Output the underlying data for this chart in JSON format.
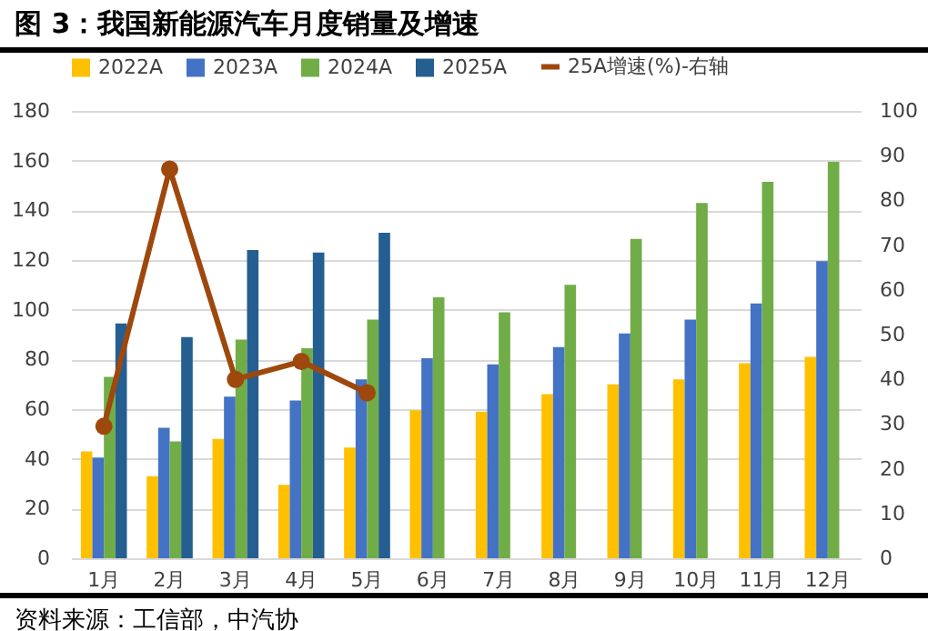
{
  "chart_data": {
    "type": "bar",
    "title": "图 3：我国新能源汽车月度销量及增速",
    "categories": [
      "1月",
      "2月",
      "3月",
      "4月",
      "5月",
      "6月",
      "7月",
      "8月",
      "9月",
      "10月",
      "11月",
      "12月"
    ],
    "series": [
      {
        "name": "2022A",
        "color": "#ffc000",
        "values": [
          43,
          33,
          48,
          29.5,
          44.5,
          59.5,
          59,
          66,
          70,
          72,
          78.5,
          81
        ]
      },
      {
        "name": "2023A",
        "color": "#4472c4",
        "values": [
          40.5,
          52.5,
          65,
          63.5,
          72,
          80.5,
          78,
          85,
          90.5,
          96,
          102.5,
          119.5
        ]
      },
      {
        "name": "2024A",
        "color": "#70ad47",
        "values": [
          73,
          47,
          88,
          84.5,
          96,
          105,
          99,
          110,
          128.5,
          143,
          151.5,
          159.5
        ]
      },
      {
        "name": "2025A",
        "color": "#255e91",
        "values": [
          94.5,
          89,
          124,
          123,
          131,
          null,
          null,
          null,
          null,
          null,
          null,
          null
        ]
      },
      {
        "name": "25A增速(%)-右轴",
        "color": "#9e480e",
        "type": "line",
        "axis": "y2",
        "marker": "circle",
        "values": [
          29.5,
          87,
          40,
          44,
          37,
          null,
          null,
          null,
          null,
          null,
          null,
          null
        ]
      }
    ],
    "ylim": [
      0,
      180
    ],
    "yticks": [
      0,
      20,
      40,
      60,
      80,
      100,
      120,
      140,
      160,
      180
    ],
    "y2lim": [
      0,
      100
    ],
    "y2ticks": [
      0,
      10,
      20,
      30,
      40,
      50,
      60,
      70,
      80,
      90,
      100
    ],
    "grid": "y",
    "legend": "top",
    "annotations": [
      "资料来源：工信部，中汽协"
    ]
  }
}
